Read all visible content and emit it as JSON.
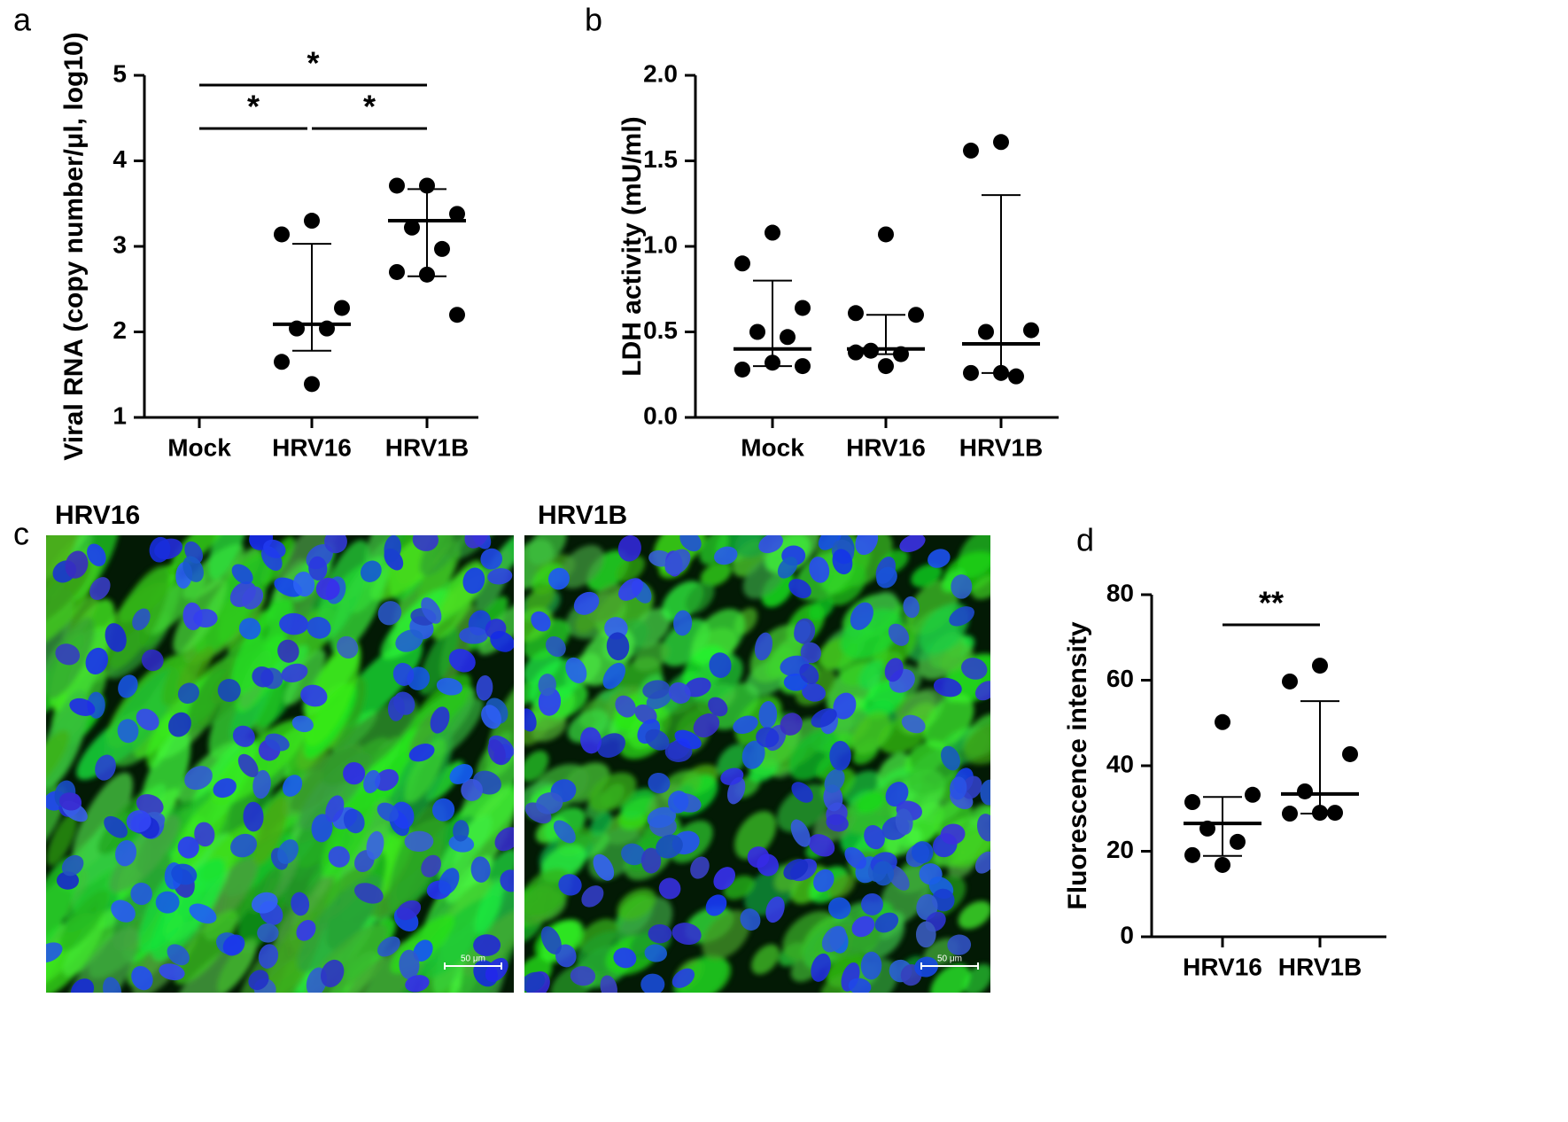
{
  "chart_data": [
    {
      "type": "dot",
      "panel_label": "a",
      "y_label": "Viral RNA (copy number/μl, log10)",
      "categories": [
        "Mock",
        "HRV16",
        "HRV1B"
      ],
      "values": [
        [],
        [
          3.3,
          3.14,
          2.28,
          2.04,
          2.04,
          1.65,
          1.39
        ],
        [
          3.71,
          3.71,
          3.38,
          3.22,
          2.97,
          2.7,
          2.67,
          2.2
        ]
      ],
      "medians": [
        null,
        2.09,
        3.3
      ],
      "lower": [
        null,
        1.78,
        2.65
      ],
      "upper": [
        null,
        3.03,
        3.67
      ],
      "ylim": [
        1,
        5
      ],
      "yticks": [
        1,
        2,
        3,
        4,
        5
      ],
      "comparisons": [
        {
          "between": [
            0,
            2
          ],
          "label": "*"
        },
        {
          "between": [
            0,
            1
          ],
          "label": "*"
        },
        {
          "between": [
            1,
            2
          ],
          "label": "*"
        }
      ]
    },
    {
      "type": "dot",
      "panel_label": "b",
      "y_label": "LDH activity (mU/ml)",
      "categories": [
        "Mock",
        "HRV16",
        "HRV1B"
      ],
      "values": [
        [
          1.08,
          0.9,
          0.64,
          0.5,
          0.47,
          0.28,
          0.32,
          0.3
        ],
        [
          1.07,
          0.61,
          0.6,
          0.39,
          0.37,
          0.38,
          0.3
        ],
        [
          1.61,
          1.56,
          0.51,
          0.5,
          0.24,
          0.26,
          0.26
        ]
      ],
      "medians": [
        0.4,
        0.4,
        0.43
      ],
      "lower": [
        0.3,
        0.37,
        0.26
      ],
      "upper": [
        0.8,
        0.6,
        1.3
      ],
      "ylim": [
        0,
        2
      ],
      "yticks": [
        {
          "value": 0,
          "label": "0.0"
        },
        {
          "value": 0.5,
          "label": "0.5"
        },
        {
          "value": 1,
          "label": "1.0"
        },
        {
          "value": 1.5,
          "label": "1.5"
        },
        {
          "value": 2,
          "label": "2.0"
        }
      ],
      "comparisons": []
    },
    {
      "type": "dot",
      "panel_label": "d",
      "y_label": "Fluorescence intensity",
      "categories": [
        "HRV16",
        "HRV1B"
      ],
      "values": [
        [
          50.2,
          31.5,
          33.2,
          25.3,
          22.2,
          19.1,
          16.8
        ],
        [
          63.4,
          59.7,
          42.7,
          34.0,
          29.0,
          28.8,
          29.0
        ]
      ],
      "medians": [
        26.5,
        33.4
      ],
      "lower": [
        18.9,
        28.8
      ],
      "upper": [
        32.7,
        55.1
      ],
      "ylim": [
        0,
        80
      ],
      "yticks": [
        0,
        20,
        40,
        60,
        80
      ],
      "comparisons": [
        {
          "between": [
            0,
            1
          ],
          "label": "**"
        }
      ]
    }
  ],
  "figure_c": {
    "panel_label": "c",
    "images": [
      {
        "title": "HRV16",
        "scale_bar": "50 μm"
      },
      {
        "title": "HRV1B",
        "scale_bar": "50 μm"
      }
    ]
  }
}
